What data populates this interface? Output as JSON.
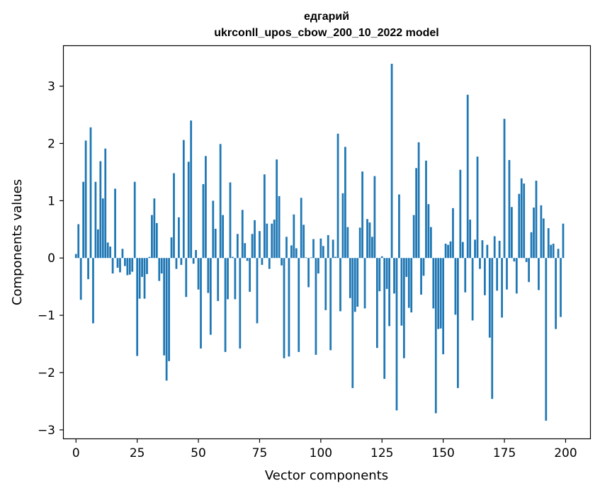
{
  "chart_data": {
    "type": "bar",
    "title_line1": "едгарий",
    "title_line2": "ukrconll_upos_cbow_200_10_2022 model",
    "xlabel": "Vector components",
    "ylabel": "Components values",
    "xlim": [
      -5,
      210
    ],
    "ylim": [
      -3.15,
      3.7
    ],
    "xticks": [
      0,
      25,
      50,
      75,
      100,
      125,
      150,
      175,
      200
    ],
    "yticks": [
      -3,
      -2,
      -1,
      0,
      1,
      2,
      3
    ],
    "ytick_labels": [
      "−3",
      "−2",
      "−1",
      "0",
      "1",
      "2",
      "3"
    ],
    "bar_color": "#1f77b4",
    "x": [
      0,
      1,
      2,
      3,
      4,
      5,
      6,
      7,
      8,
      9,
      10,
      11,
      12,
      13,
      14,
      15,
      16,
      17,
      18,
      19,
      20,
      21,
      22,
      23,
      24,
      25,
      26,
      27,
      28,
      29,
      30,
      31,
      32,
      33,
      34,
      35,
      36,
      37,
      38,
      39,
      40,
      41,
      42,
      43,
      44,
      45,
      46,
      47,
      48,
      49,
      50,
      51,
      52,
      53,
      54,
      55,
      56,
      57,
      58,
      59,
      60,
      61,
      62,
      63,
      64,
      65,
      66,
      67,
      68,
      69,
      70,
      71,
      72,
      73,
      74,
      75,
      76,
      77,
      78,
      79,
      80,
      81,
      82,
      83,
      84,
      85,
      86,
      87,
      88,
      89,
      90,
      91,
      92,
      93,
      94,
      95,
      96,
      97,
      98,
      99,
      100,
      101,
      102,
      103,
      104,
      105,
      106,
      107,
      108,
      109,
      110,
      111,
      112,
      113,
      114,
      115,
      116,
      117,
      118,
      119,
      120,
      121,
      122,
      123,
      124,
      125,
      126,
      127,
      128,
      129,
      130,
      131,
      132,
      133,
      134,
      135,
      136,
      137,
      138,
      139,
      140,
      141,
      142,
      143,
      144,
      145,
      146,
      147,
      148,
      149,
      150,
      151,
      152,
      153,
      154,
      155,
      156,
      157,
      158,
      159,
      160,
      161,
      162,
      163,
      164,
      165,
      166,
      167,
      168,
      169,
      170,
      171,
      172,
      173,
      174,
      175,
      176,
      177,
      178,
      179,
      180,
      181,
      182,
      183,
      184,
      185,
      186,
      187,
      188,
      189,
      190,
      191,
      192,
      193,
      194,
      195,
      196,
      197,
      198,
      199
    ],
    "values": [
      0.07,
      0.59,
      -0.73,
      1.33,
      2.05,
      -0.37,
      2.28,
      -1.14,
      1.33,
      0.5,
      1.69,
      1.04,
      1.91,
      0.27,
      0.2,
      -0.27,
      1.21,
      -0.17,
      -0.25,
      0.16,
      -0.14,
      -0.3,
      -0.29,
      -0.24,
      1.33,
      -1.71,
      -0.71,
      -0.33,
      -0.71,
      -0.28,
      0.02,
      0.75,
      1.04,
      0.61,
      -0.4,
      -0.27,
      -1.7,
      -2.14,
      -1.8,
      0.36,
      1.48,
      -0.19,
      0.71,
      -0.12,
      2.06,
      -0.68,
      1.68,
      2.4,
      -0.1,
      0.14,
      -0.55,
      -1.58,
      1.29,
      1.78,
      -0.61,
      -1.34,
      1.0,
      0.51,
      -0.75,
      1.99,
      0.75,
      -1.64,
      -0.72,
      1.32,
      0.02,
      -0.72,
      0.42,
      -1.58,
      0.84,
      0.26,
      -0.05,
      -0.59,
      0.42,
      0.66,
      -1.14,
      0.47,
      -0.12,
      1.46,
      0.6,
      -0.19,
      0.6,
      0.67,
      1.72,
      1.08,
      -0.13,
      -1.75,
      0.37,
      -1.72,
      0.22,
      0.76,
      0.17,
      -1.64,
      1.05,
      0.58,
      0.01,
      -0.51,
      0.01,
      0.33,
      -1.69,
      -0.27,
      0.34,
      0.21,
      -0.91,
      0.4,
      -1.61,
      0.32,
      0.02,
      2.17,
      -0.93,
      1.13,
      1.94,
      0.54,
      -0.7,
      -2.27,
      -0.94,
      -0.85,
      0.53,
      1.51,
      -0.88,
      0.68,
      0.62,
      0.37,
      1.43,
      -1.57,
      -0.58,
      0.03,
      -2.11,
      -0.54,
      -1.19,
      3.39,
      -0.62,
      -2.66,
      1.11,
      -1.18,
      -1.75,
      -0.33,
      -0.87,
      -0.95,
      0.75,
      1.57,
      2.02,
      -0.64,
      -0.31,
      1.7,
      0.94,
      0.54,
      -0.88,
      -2.71,
      -1.24,
      -1.23,
      -1.68,
      0.25,
      0.23,
      0.29,
      0.87,
      -0.99,
      -2.27,
      1.54,
      0.28,
      -0.6,
      2.85,
      0.67,
      -1.09,
      0.32,
      1.77,
      -0.19,
      0.31,
      -0.65,
      0.23,
      -1.39,
      -2.46,
      0.38,
      -0.57,
      0.3,
      -1.04,
      2.43,
      -0.55,
      1.71,
      0.89,
      -0.06,
      -0.62,
      1.12,
      1.39,
      1.3,
      -0.07,
      -0.42,
      0.45,
      0.88,
      1.35,
      -0.56,
      0.92,
      0.69,
      -2.84,
      0.52,
      0.23,
      0.25,
      -1.24,
      0.16,
      -1.03,
      0.6
    ]
  }
}
